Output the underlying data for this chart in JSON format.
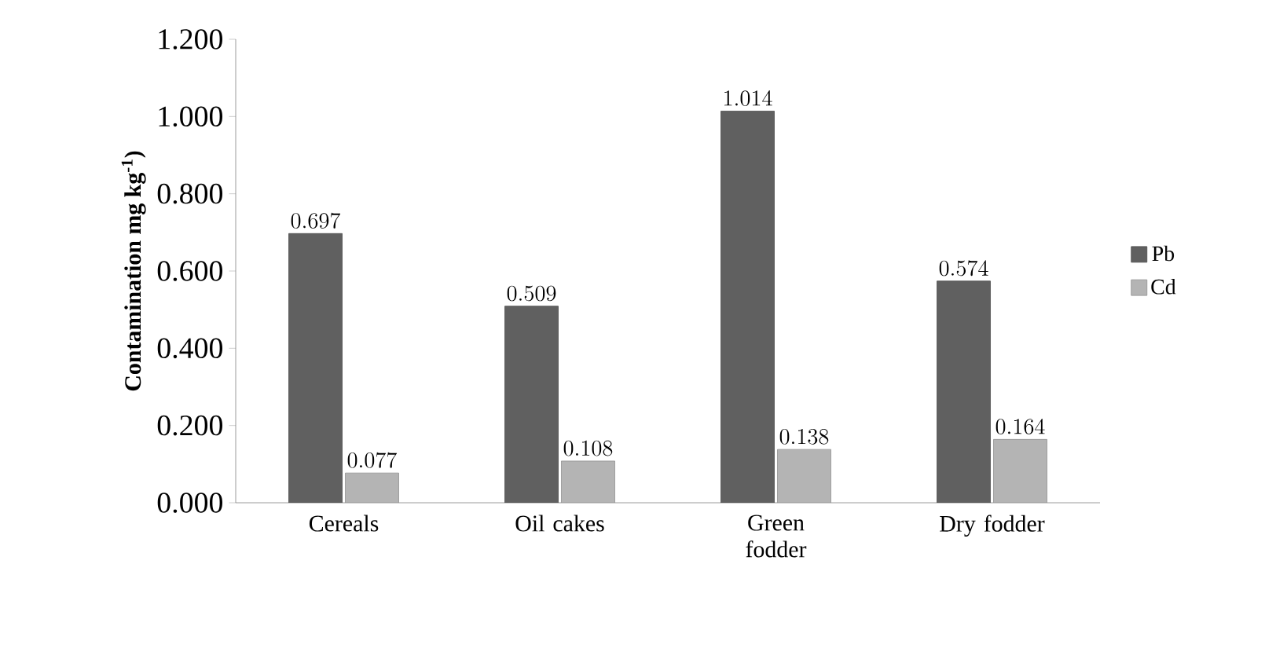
{
  "chart_data": {
    "type": "bar",
    "ylabel": "Contamination mg kg$^{-1}$)",
    "categories": [
      "Cereals",
      "Oil cakes",
      "Green fodder",
      "Dry fodder"
    ],
    "series": [
      {
        "name": "Pb",
        "color": "#606060",
        "values": [
          0.697,
          0.509,
          1.014,
          0.574
        ]
      },
      {
        "name": "Cd",
        "color": "#b4b4b4",
        "values": [
          0.077,
          0.108,
          0.138,
          0.164
        ]
      }
    ],
    "ylim": [
      0,
      1.2
    ],
    "yticks": [
      {
        "value": 0,
        "label": "0.000"
      },
      {
        "value": 0.2,
        "label": "0.200"
      },
      {
        "value": 0.4,
        "label": "0.400"
      },
      {
        "value": 0.6,
        "label": "0.600"
      },
      {
        "value": 0.8,
        "label": "0.800"
      },
      {
        "value": 1.0,
        "label": "1.000"
      },
      {
        "value": 1.2,
        "label": "1.200"
      }
    ],
    "data_labels": true,
    "legend": "right",
    "grid": false
  }
}
